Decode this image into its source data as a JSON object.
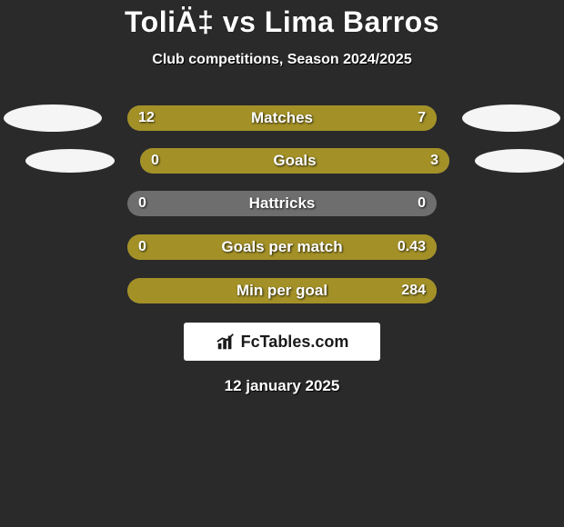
{
  "title": "ToliÄ‡ vs Lima Barros",
  "subtitle": "Club competitions, Season 2024/2025",
  "colors": {
    "left": "#a39128",
    "right": "#a39128",
    "neutral": "#6e6e6e"
  },
  "rows": [
    {
      "label": "Matches",
      "left": "12",
      "right": "7",
      "show_ovals": true,
      "fill": "split",
      "left_pct": 61,
      "right_pct": 39
    },
    {
      "label": "Goals",
      "left": "0",
      "right": "3",
      "show_ovals": true,
      "fill": "right",
      "left_pct": 0,
      "right_pct": 100
    },
    {
      "label": "Hattricks",
      "left": "0",
      "right": "0",
      "show_ovals": false,
      "fill": "none",
      "left_pct": 0,
      "right_pct": 0
    },
    {
      "label": "Goals per match",
      "left": "0",
      "right": "0.43",
      "show_ovals": false,
      "fill": "right",
      "left_pct": 0,
      "right_pct": 100
    },
    {
      "label": "Min per goal",
      "left": "",
      "right": "284",
      "show_ovals": false,
      "fill": "right",
      "left_pct": 0,
      "right_pct": 100
    }
  ],
  "badge": {
    "text": "FcTables.com"
  },
  "date": "12 january 2025",
  "oval": {
    "bg": "#f5f5f5",
    "width": 108,
    "height": 30
  }
}
